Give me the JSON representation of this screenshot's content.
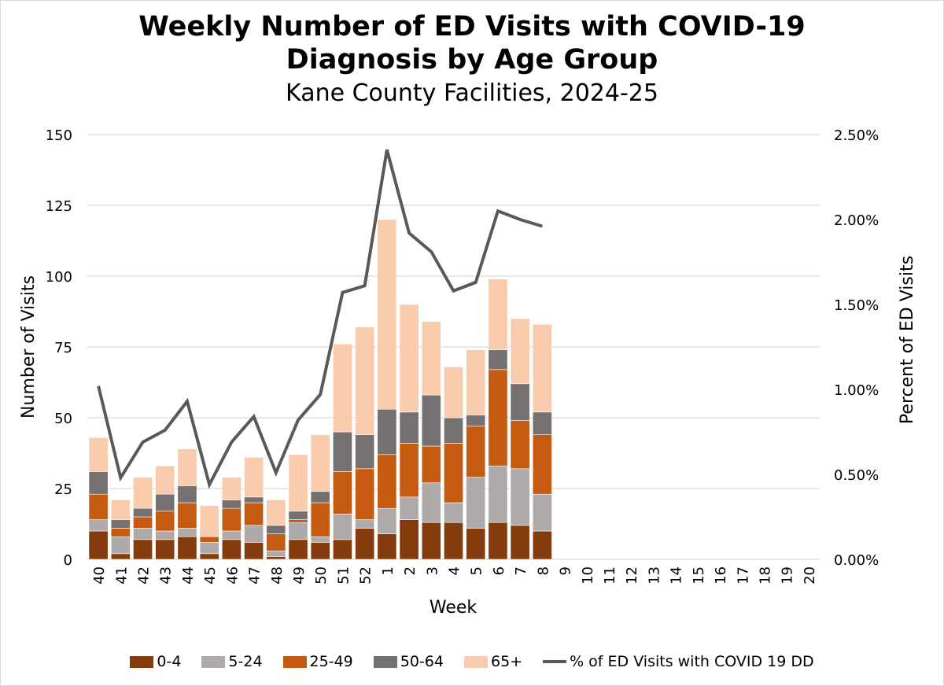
{
  "chart_data": {
    "type": "bar",
    "stacked": true,
    "title": "Weekly Number of ED Visits with COVID-19 Diagnosis by Age Group",
    "title_lines": [
      "Weekly Number of ED Visits with COVID-19",
      "Diagnosis by Age Group"
    ],
    "subtitle": "Kane County Facilities, 2024-25",
    "xlabel": "Week",
    "ylabel": "Number of Visits",
    "y2label": "Percent of ED Visits",
    "ylim": [
      0,
      150
    ],
    "yticks": [
      0,
      25,
      50,
      75,
      100,
      125,
      150
    ],
    "y2lim": [
      0,
      0.025
    ],
    "y2ticks": [
      "0.00%",
      "0.50%",
      "1.00%",
      "1.50%",
      "2.00%",
      "2.50%"
    ],
    "grid": true,
    "legend_position": "bottom",
    "categories": [
      "40",
      "41",
      "42",
      "43",
      "44",
      "45",
      "46",
      "47",
      "48",
      "49",
      "50",
      "51",
      "52",
      "1",
      "2",
      "3",
      "4",
      "5",
      "6",
      "7",
      "8",
      "9",
      "10",
      "11",
      "12",
      "13",
      "14",
      "15",
      "16",
      "17",
      "18",
      "19",
      "20"
    ],
    "series": [
      {
        "name": "0-4",
        "color": "#843c0c",
        "values": [
          10,
          2,
          7,
          7,
          8,
          2,
          7,
          6,
          1,
          7,
          6,
          7,
          11,
          9,
          14,
          13,
          13,
          11,
          13,
          12,
          10,
          null,
          null,
          null,
          null,
          null,
          null,
          null,
          null,
          null,
          null,
          null,
          null
        ]
      },
      {
        "name": "5-24",
        "color": "#aeaaaa",
        "values": [
          4,
          6,
          4,
          3,
          3,
          4,
          3,
          6,
          2,
          6,
          2,
          9,
          3,
          9,
          8,
          14,
          7,
          18,
          20,
          20,
          13,
          null,
          null,
          null,
          null,
          null,
          null,
          null,
          null,
          null,
          null,
          null,
          null
        ]
      },
      {
        "name": "25-49",
        "color": "#c55a11",
        "values": [
          9,
          3,
          4,
          7,
          9,
          2,
          8,
          8,
          6,
          1,
          12,
          15,
          18,
          19,
          19,
          13,
          21,
          18,
          34,
          17,
          21,
          null,
          null,
          null,
          null,
          null,
          null,
          null,
          null,
          null,
          null,
          null,
          null
        ]
      },
      {
        "name": "50-64",
        "color": "#767171",
        "values": [
          8,
          3,
          3,
          6,
          6,
          0,
          3,
          2,
          3,
          3,
          4,
          14,
          12,
          16,
          11,
          18,
          9,
          4,
          7,
          13,
          8,
          null,
          null,
          null,
          null,
          null,
          null,
          null,
          null,
          null,
          null,
          null,
          null
        ]
      },
      {
        "name": "65+",
        "color": "#f8cbad",
        "values": [
          12,
          7,
          11,
          10,
          13,
          11,
          8,
          14,
          9,
          20,
          20,
          31,
          38,
          67,
          38,
          26,
          18,
          23,
          25,
          23,
          31,
          null,
          null,
          null,
          null,
          null,
          null,
          null,
          null,
          null,
          null,
          null,
          null
        ]
      }
    ],
    "line_series": {
      "name": "% of ED Visits with COVID 19 DD",
      "color": "#595959",
      "axis": "secondary",
      "values": [
        1.02,
        0.48,
        0.69,
        0.76,
        0.93,
        0.44,
        0.69,
        0.84,
        0.51,
        0.82,
        0.97,
        1.57,
        1.61,
        2.41,
        1.92,
        1.81,
        1.58,
        1.63,
        2.05,
        2.0,
        1.96,
        null,
        null,
        null,
        null,
        null,
        null,
        null,
        null,
        null,
        null,
        null,
        null
      ],
      "unit": "percent"
    }
  }
}
